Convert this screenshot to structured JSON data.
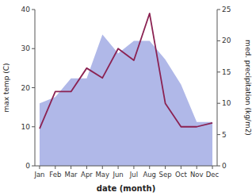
{
  "chart_data": {
    "type": "line",
    "categories": [
      "Jan",
      "Feb",
      "Mar",
      "Apr",
      "May",
      "Jun",
      "Jul",
      "Aug",
      "Sep",
      "Oct",
      "Nov",
      "Dec"
    ],
    "series": [
      {
        "type": "area",
        "axis": "y2",
        "color": "#b0b8e8",
        "values": [
          10.0,
          11.0,
          14.0,
          14.0,
          21.0,
          18.0,
          20.0,
          20.0,
          17.0,
          13.0,
          7.0,
          7.0
        ]
      },
      {
        "type": "line",
        "color": "#8B2252",
        "values": [
          9.5,
          19.0,
          19.0,
          25.0,
          22.5,
          30.0,
          27.0,
          39.0,
          16.0,
          10.0,
          10.0,
          11.0
        ]
      }
    ],
    "x_label": "date (month)",
    "y_label": "max temp (C)",
    "y2_label": "med. precipitation (kg/m2)",
    "ylim": [
      0,
      40
    ],
    "yticks": [
      0,
      10,
      20,
      30,
      40
    ],
    "y2lim": [
      0,
      25
    ],
    "y2ticks": [
      0,
      5,
      10,
      15,
      20,
      25
    ]
  }
}
